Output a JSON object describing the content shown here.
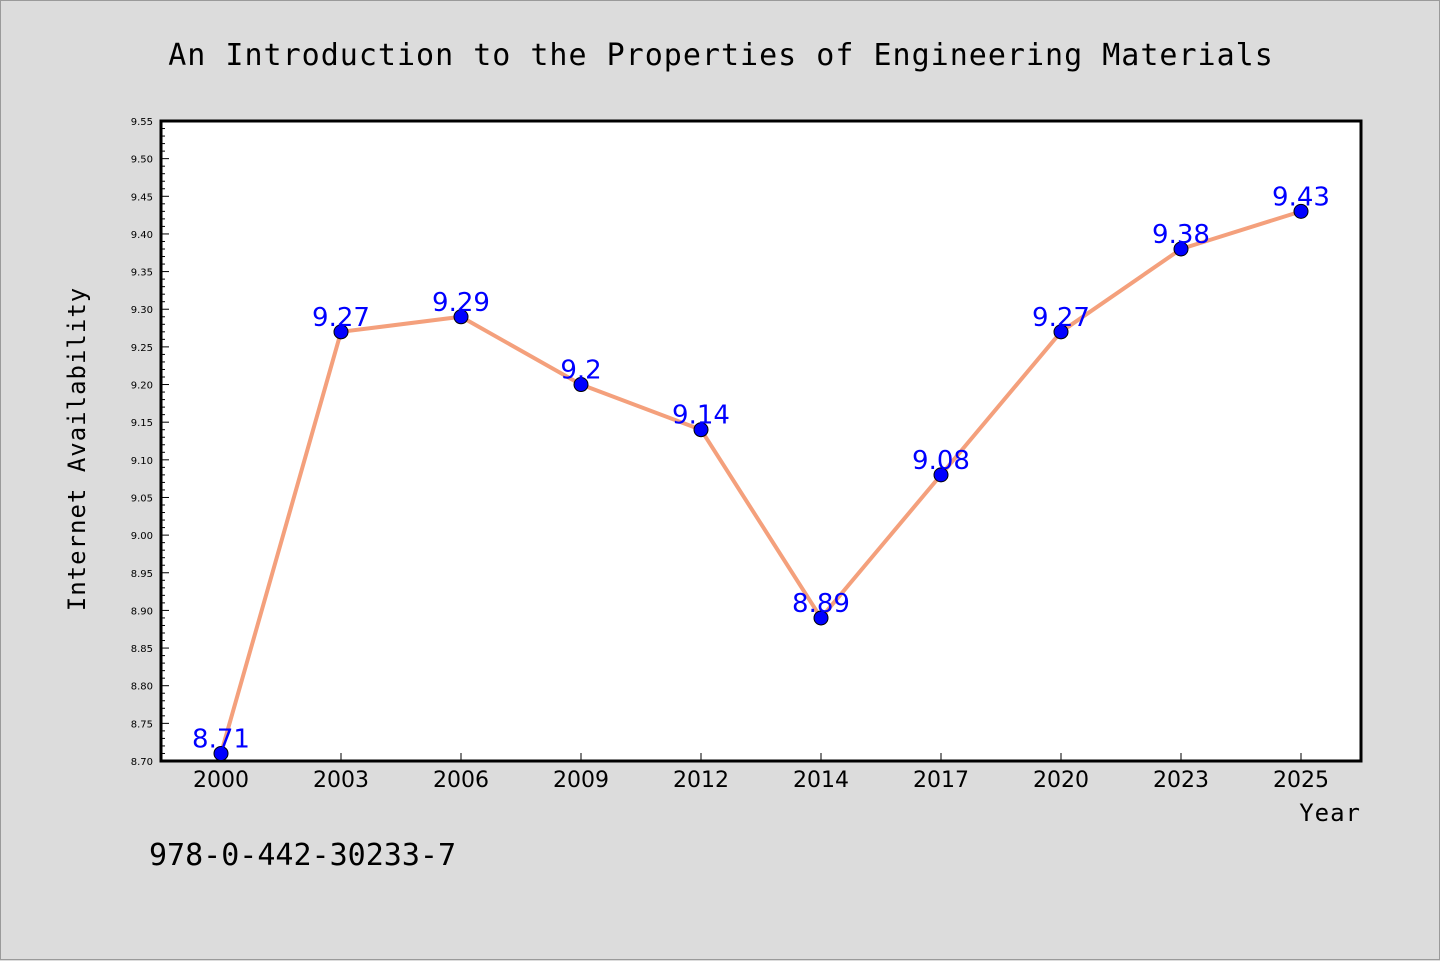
{
  "chart_data": {
    "type": "line",
    "title": "An Introduction to the Properties of Engineering Materials",
    "xlabel": "Year",
    "ylabel": "Internet Availability",
    "categories": [
      "2000",
      "2003",
      "2006",
      "2009",
      "2012",
      "2014",
      "2017",
      "2020",
      "2023",
      "2025"
    ],
    "series": [
      {
        "values": [
          8.71,
          9.27,
          9.29,
          9.2,
          9.14,
          8.89,
          9.08,
          9.27,
          9.38,
          9.43
        ],
        "data_labels": [
          "8.71",
          "9.27",
          "9.29",
          "9.2",
          "9.14",
          "8.89",
          "9.08",
          "9.27",
          "9.38",
          "9.43"
        ],
        "line_color": "#f4a07c",
        "marker_color": "#0000ff"
      }
    ],
    "ylim": [
      8.7,
      9.55
    ],
    "yticks": [
      "8.70",
      "8.75",
      "8.80",
      "8.85",
      "8.90",
      "8.95",
      "9.00",
      "9.05",
      "9.10",
      "9.15",
      "9.20",
      "9.25",
      "9.30",
      "9.35",
      "9.40",
      "9.45",
      "9.50",
      "9.55"
    ],
    "grid": false,
    "legend": "none",
    "plot_background": "#ffffff",
    "page_background": "#dcdcdc"
  },
  "footer": {
    "isbn": "978-0-442-30233-7"
  }
}
